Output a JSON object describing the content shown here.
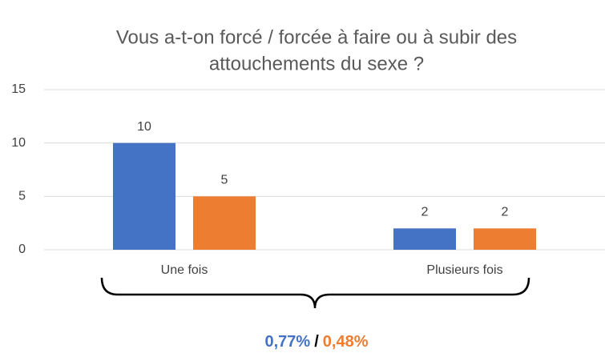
{
  "chart_data": {
    "type": "bar",
    "title": [
      "Vous a-t-on forcé / forcée à faire ou à subir des",
      "attouchements du sexe ?"
    ],
    "categories": [
      "Une fois",
      "Plusieurs fois"
    ],
    "series": [
      {
        "color": "#4472c4",
        "values": [
          10,
          2
        ]
      },
      {
        "color": "#ed7d31",
        "values": [
          5,
          2
        ]
      }
    ],
    "ylim": [
      0,
      15
    ],
    "yticks": [
      0,
      5,
      10,
      15
    ],
    "grid": true,
    "annotation": [
      {
        "text": "0,77%",
        "color": "#4472c4"
      },
      {
        "text": "/",
        "color": "#000000"
      },
      {
        "text": "0,48%",
        "color": "#ed7d31"
      }
    ]
  }
}
